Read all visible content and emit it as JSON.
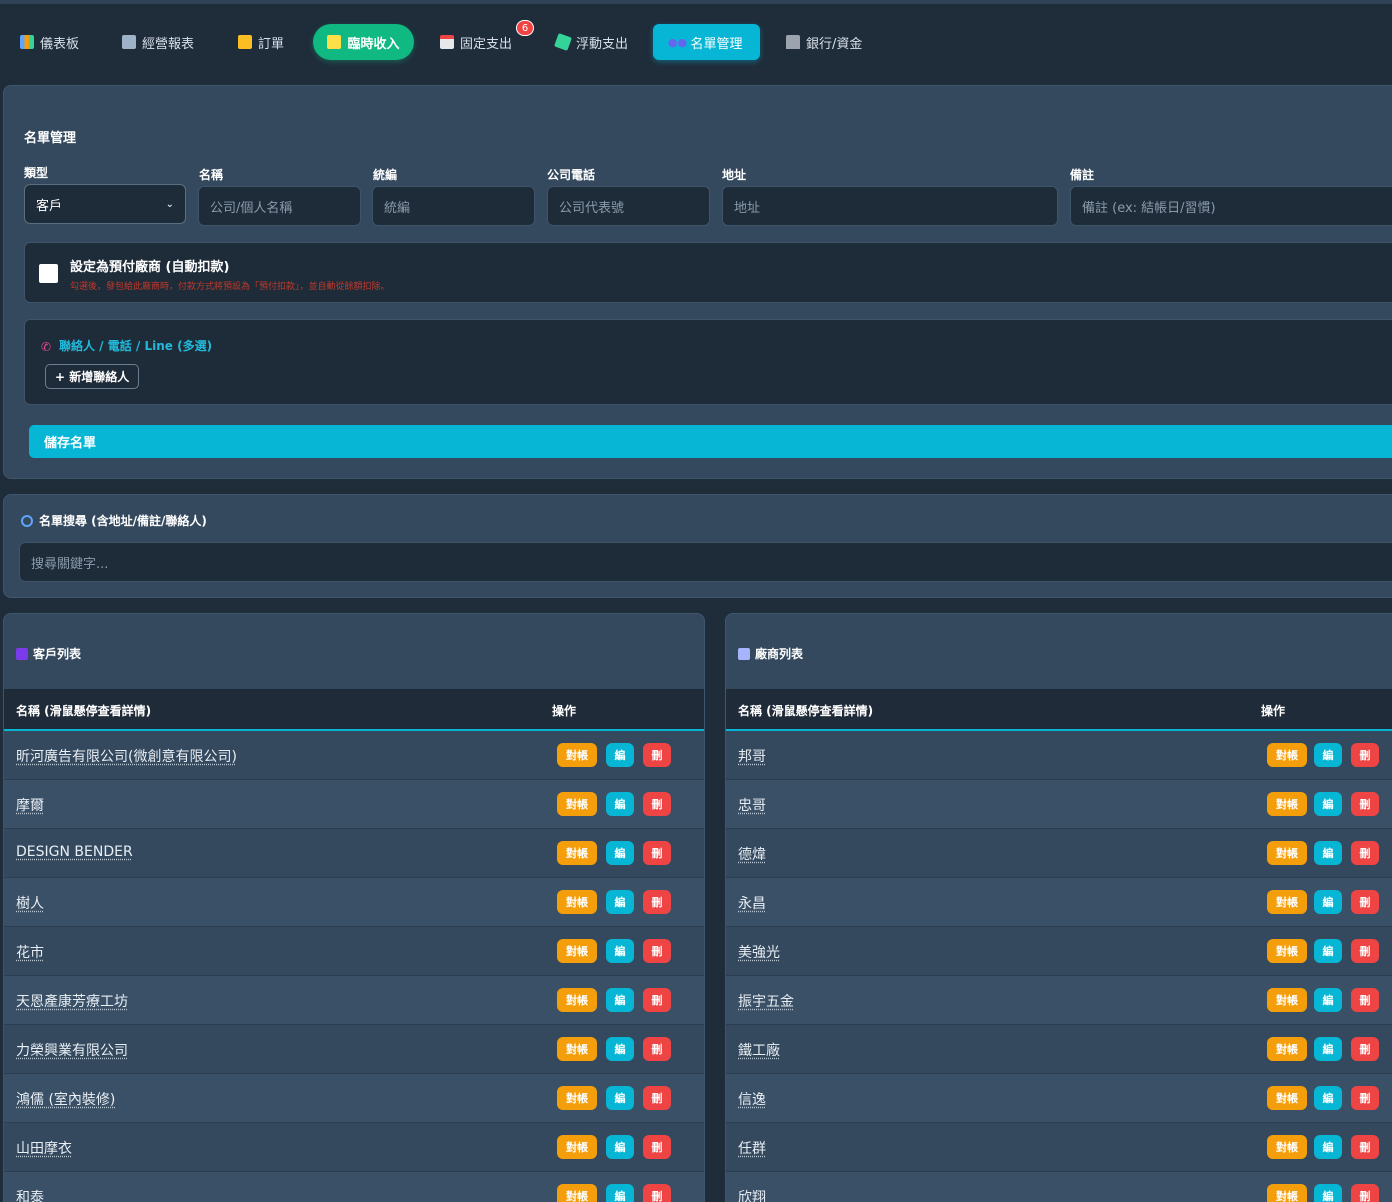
{
  "nav": {
    "items": [
      {
        "label": "儀表板",
        "icon": "bar-chart-icon"
      },
      {
        "label": "經營報表",
        "icon": "trend-chart-icon"
      },
      {
        "label": "訂單",
        "icon": "document-icon"
      },
      {
        "label": "臨時收入",
        "icon": "money-icon",
        "active_style": "green"
      },
      {
        "label": "固定支出",
        "icon": "calendar-icon",
        "badge": "6"
      },
      {
        "label": "浮動支出",
        "icon": "money-wings-icon"
      },
      {
        "label": "名單管理",
        "icon": "users-icon",
        "active": true
      },
      {
        "label": "銀行/資金",
        "icon": "bank-icon"
      }
    ]
  },
  "form": {
    "title": "名單管理",
    "type_label": "類型",
    "type_value": "客戶",
    "name_label": "名稱",
    "name_placeholder": "公司/個人名稱",
    "taxid_label": "統編",
    "taxid_placeholder": "統編",
    "phone_label": "公司電話",
    "phone_placeholder": "公司代表號",
    "address_label": "地址",
    "address_placeholder": "地址",
    "note_label": "備註",
    "note_placeholder": "備註 (ex: 結帳日/習慣)",
    "prepay_title": "設定為預付廠商 (自動扣款)",
    "prepay_note": "勾選後，發包給此廠商時，付款方式將預設為「預付扣款」，並自動從餘額扣除。",
    "contacts_heading": "聯絡人 / 電話 / Line (多選)",
    "add_contact": "+ 新增聯絡人",
    "save": "儲存名單"
  },
  "search": {
    "title": "名單搜尋 (含地址/備註/聯絡人)",
    "placeholder": "搜尋關鍵字..."
  },
  "actions": {
    "recon": "對帳",
    "edit": "編",
    "del": "刪"
  },
  "customers": {
    "title": "客戶列表",
    "col_name": "名稱 (滑鼠懸停查看詳情)",
    "col_action": "操作",
    "rows": [
      "昕河廣告有限公司(微創意有限公司)",
      "摩爾",
      "DESIGN BENDER",
      "樹人",
      "花市",
      "天恩產康芳療工坊",
      "力榮興業有限公司",
      "鴻儒 (室內裝修)",
      "山田摩衣",
      "和泰"
    ]
  },
  "vendors": {
    "title": "廠商列表",
    "col_name": "名稱 (滑鼠懸停查看詳情)",
    "col_action": "操作",
    "rows": [
      "邦哥",
      "忠哥",
      "德煒",
      "永昌",
      "美強光",
      "振宇五金",
      "鐵工廠",
      "信逸",
      "任群",
      "欣翔"
    ]
  }
}
